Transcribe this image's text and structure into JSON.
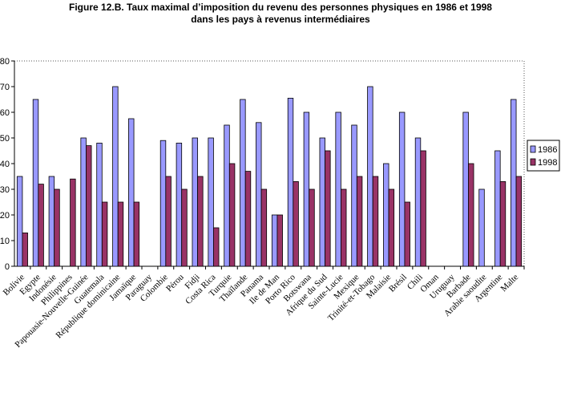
{
  "chart_data": {
    "type": "bar",
    "title_line1": "Figure  12.B.  Taux maximal d’imposition du revenu des personnes physiques en 1986 et 1998",
    "title_line2": "dans les pays à revenus intermédiaires",
    "xlabel": "",
    "ylabel": "",
    "ylim": [
      0,
      80
    ],
    "yticks": [
      0,
      10,
      20,
      30,
      40,
      50,
      60,
      70,
      80
    ],
    "categories": [
      "Bolivie",
      "Egypte",
      "Indonésie",
      "Philippines",
      "Papouasie-Nouvelle-Guinée",
      "Guatemala",
      "République dominicaine",
      "Jamaïque",
      "Paraguay",
      "Colombie",
      "Pérou",
      "Fidji",
      "Costa Rica",
      "Turquie",
      "Thaïlande",
      "Panama",
      "Ile de Man",
      "Porto Rico",
      "Botswana",
      "Afrique du Sud",
      "Sainte-Lucie",
      "Mexique",
      "Trinité-et-Tobago",
      "Malaisie",
      "Brésil",
      "Chili",
      "Oman",
      "Uruguay",
      "Barbade",
      "Arabie saoudite",
      "Argentine",
      "Malte"
    ],
    "series": [
      {
        "name": "1986",
        "color": "#9999ff",
        "values": [
          35,
          65,
          35,
          null,
          50,
          48,
          70,
          57.5,
          null,
          49,
          48,
          50,
          50,
          55,
          65,
          56,
          20,
          65.5,
          60,
          50,
          60,
          55,
          70,
          40,
          60,
          50,
          null,
          null,
          60,
          30,
          45,
          65
        ]
      },
      {
        "name": "1998",
        "color": "#993366",
        "values": [
          13,
          32,
          30,
          34,
          47,
          25,
          25,
          25,
          null,
          35,
          30,
          35,
          15,
          40,
          37,
          30,
          20,
          33,
          30,
          45,
          30,
          35,
          35,
          30,
          25,
          45,
          null,
          null,
          40,
          null,
          33,
          35
        ]
      }
    ],
    "legend_position": "right",
    "grid": false
  }
}
